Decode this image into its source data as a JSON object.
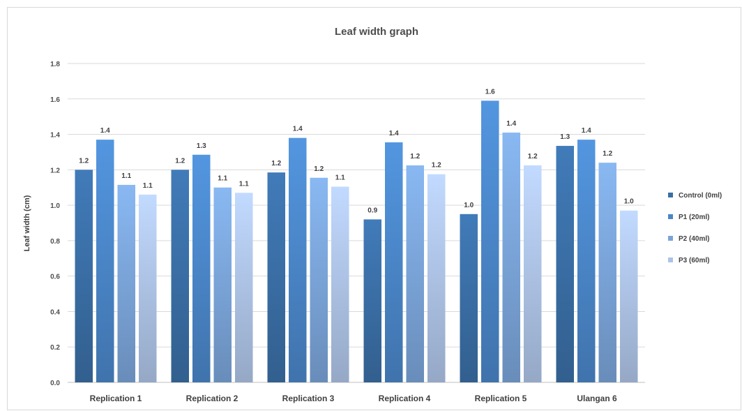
{
  "chart_data": {
    "type": "bar",
    "title": "Leaf width graph",
    "xlabel": "",
    "ylabel": "Leaf width (cm)",
    "ylim": [
      0,
      1.8
    ],
    "yticks": [
      "0.0",
      "0.2",
      "0.4",
      "0.6",
      "0.8",
      "1.0",
      "1.2",
      "1.4",
      "1.6",
      "1.8"
    ],
    "grid": true,
    "legend_position": "right",
    "categories": [
      "Replication 1",
      "Replication 2",
      "Replication 3",
      "Replication 4",
      "Replication 5",
      "Ulangan 6"
    ],
    "series": [
      {
        "name": "Control (0ml)",
        "color": "#3a6ea5",
        "values": [
          1.2,
          1.2,
          1.185,
          0.92,
          0.95,
          1.335
        ],
        "labels": [
          "1.2",
          "1.2",
          "1.2",
          "0.9",
          "1.0",
          "1.3"
        ]
      },
      {
        "name": "P1 (20ml)",
        "color": "#4a86c8",
        "values": [
          1.37,
          1.285,
          1.38,
          1.355,
          1.59,
          1.37
        ],
        "labels": [
          "1.4",
          "1.3",
          "1.4",
          "1.4",
          "1.6",
          "1.4"
        ]
      },
      {
        "name": "P2 (40ml)",
        "color": "#7aa4d8",
        "values": [
          1.115,
          1.1,
          1.155,
          1.225,
          1.41,
          1.24
        ],
        "labels": [
          "1.1",
          "1.1",
          "1.2",
          "1.2",
          "1.4",
          "1.2"
        ]
      },
      {
        "name": "P3 (60ml)",
        "color": "#adc3e6",
        "values": [
          1.06,
          1.07,
          1.105,
          1.175,
          1.225,
          0.97
        ],
        "labels": [
          "1.1",
          "1.1",
          "1.1",
          "1.2",
          "1.2",
          "1.0"
        ]
      }
    ]
  }
}
